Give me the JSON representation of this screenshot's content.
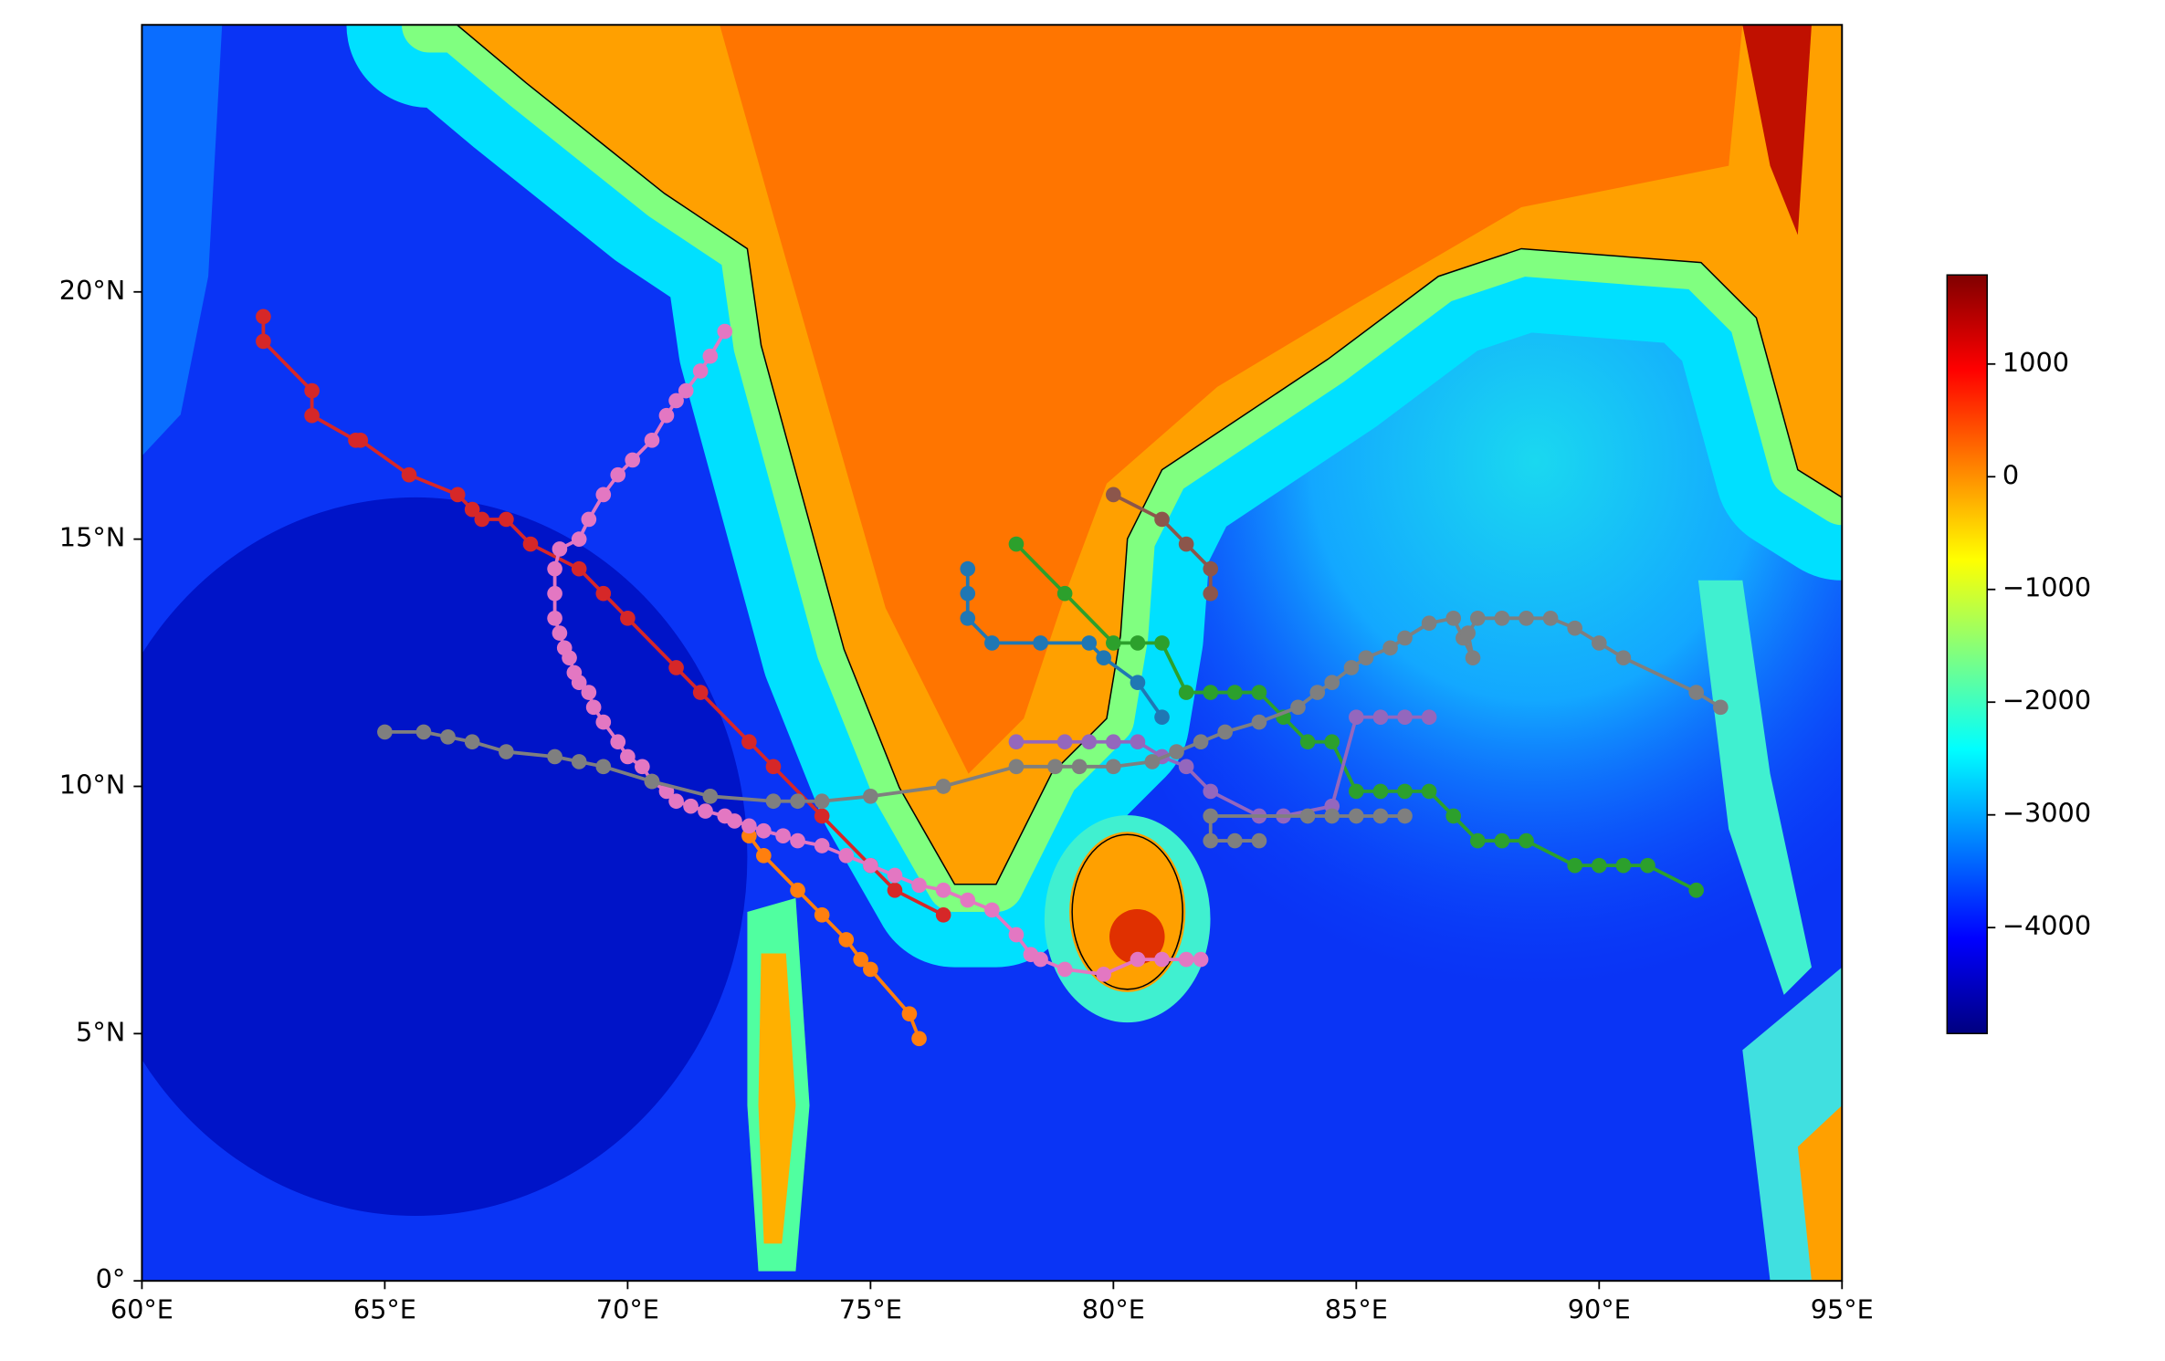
{
  "chart_data": {
    "type": "line",
    "xlim": [
      60,
      95
    ],
    "ylim": [
      0,
      25.4
    ],
    "xticks": [
      {
        "value": 60,
        "label": "60°E"
      },
      {
        "value": 65,
        "label": "65°E"
      },
      {
        "value": 70,
        "label": "70°E"
      },
      {
        "value": 75,
        "label": "75°E"
      },
      {
        "value": 80,
        "label": "80°E"
      },
      {
        "value": 85,
        "label": "85°E"
      },
      {
        "value": 90,
        "label": "90°E"
      },
      {
        "value": 95,
        "label": "95°E"
      }
    ],
    "yticks": [
      {
        "value": 0,
        "label": "0°"
      },
      {
        "value": 5,
        "label": "5°N"
      },
      {
        "value": 10,
        "label": "10°N"
      },
      {
        "value": 15,
        "label": "15°N"
      },
      {
        "value": 20,
        "label": "20°N"
      }
    ],
    "colorbar": {
      "lim": [
        -4940,
        1790
      ],
      "ticks": [
        1000,
        0,
        {
          "value": -1000,
          "label": "−1000"
        },
        {
          "value": -2000,
          "label": "−2000"
        },
        {
          "value": -3000,
          "label": "−3000"
        },
        {
          "value": -4000,
          "label": "−4000"
        }
      ]
    },
    "series": [
      {
        "color": "#d62728",
        "x": [
          62.5,
          62.5,
          63.5,
          63.5,
          64.4,
          64.5,
          65.5,
          66.5,
          66.8,
          67.0,
          67.5,
          68.0,
          69.0,
          69.5,
          70.0,
          71.0,
          71.5,
          72.5,
          73.0,
          74.0,
          75.0,
          75.5,
          76.5
        ],
        "values": [
          19.5,
          19.0,
          18.0,
          17.5,
          17.0,
          17.0,
          16.3,
          15.9,
          15.6,
          15.4,
          15.4,
          14.9,
          14.4,
          13.9,
          13.4,
          12.4,
          11.9,
          10.9,
          10.4,
          9.4,
          8.4,
          7.9,
          7.4
        ]
      },
      {
        "color": "#ff7f0e",
        "x": [
          72.5,
          72.8,
          73.5,
          74.0,
          74.5,
          74.8,
          75.0,
          75.8,
          76.0
        ],
        "values": [
          9.0,
          8.6,
          7.9,
          7.4,
          6.9,
          6.5,
          6.3,
          5.4,
          4.9
        ]
      },
      {
        "color": "#2ca02c",
        "x": [
          78,
          79,
          80,
          80.5,
          81,
          81.5,
          82,
          82.5,
          83,
          83.5,
          84,
          84.5,
          85,
          85.5,
          86,
          86.5,
          87,
          87.5,
          88,
          88.5,
          89.5,
          90,
          90.5,
          91,
          92
        ],
        "values": [
          14.9,
          13.9,
          12.9,
          12.9,
          12.9,
          11.9,
          11.9,
          11.9,
          11.9,
          11.4,
          10.9,
          10.9,
          9.9,
          9.9,
          9.9,
          9.9,
          9.4,
          8.9,
          8.9,
          8.9,
          8.4,
          8.4,
          8.4,
          8.4,
          7.9
        ]
      },
      {
        "color": "#1f77b4",
        "x": [
          77.0,
          77.0,
          77.0,
          77.5,
          78.5,
          79.5,
          79.8,
          80.5,
          81.0
        ],
        "values": [
          14.4,
          13.9,
          13.4,
          12.9,
          12.9,
          12.9,
          12.6,
          12.1,
          11.4
        ]
      },
      {
        "color": "#8c564b",
        "x": [
          80.0,
          81.0,
          81.5,
          82.0,
          82.0
        ],
        "values": [
          15.9,
          15.4,
          14.9,
          14.4,
          13.9
        ]
      },
      {
        "color": "#9467bd",
        "x": [
          78,
          79,
          79.5,
          80,
          80.5,
          81,
          81.5,
          82,
          83,
          83.5,
          84.5,
          85,
          85.5,
          86,
          86.5
        ],
        "values": [
          10.9,
          10.9,
          10.9,
          10.9,
          10.9,
          10.6,
          10.4,
          9.9,
          9.4,
          9.4,
          9.6,
          11.4,
          11.4,
          11.4,
          11.4
        ]
      },
      {
        "color": "#e377c2",
        "x": [
          72.0,
          71.7,
          71.5,
          71.2,
          71.0,
          70.8,
          70.5,
          70.1,
          69.8,
          69.5,
          69.2,
          69.0,
          68.6,
          68.5,
          68.5,
          68.5,
          68.6,
          68.7,
          68.8,
          68.9,
          69.0,
          69.2,
          69.3,
          69.5,
          69.8,
          70.0,
          70.3,
          70.5,
          70.8,
          71.0,
          71.3,
          71.6,
          72.0,
          72.2,
          72.5,
          72.8,
          73.2,
          73.5,
          74.0,
          74.5,
          75.0,
          75.5,
          76.0,
          76.5,
          77.0,
          77.5,
          78.0,
          78.3,
          78.5,
          79.0,
          79.8,
          80.5,
          81.0,
          81.5,
          81.8
        ],
        "values": [
          19.2,
          18.7,
          18.4,
          18.0,
          17.8,
          17.5,
          17.0,
          16.6,
          16.3,
          15.9,
          15.4,
          15.0,
          14.8,
          14.4,
          13.9,
          13.4,
          13.1,
          12.8,
          12.6,
          12.3,
          12.1,
          11.9,
          11.6,
          11.3,
          10.9,
          10.6,
          10.4,
          10.1,
          9.9,
          9.7,
          9.6,
          9.5,
          9.4,
          9.3,
          9.2,
          9.1,
          9.0,
          8.9,
          8.8,
          8.6,
          8.4,
          8.2,
          8.0,
          7.9,
          7.7,
          7.5,
          7.0,
          6.6,
          6.5,
          6.3,
          6.2,
          6.5,
          6.5,
          6.5,
          6.5
        ]
      },
      {
        "color": "#7f7f7f",
        "x": [
          65.0,
          65.8,
          66.3,
          66.8,
          67.5,
          68.5,
          69.0,
          69.5,
          70.5,
          71.7,
          73.0,
          73.5,
          74.0,
          75.0,
          76.5,
          78.0,
          78.8,
          79.3,
          80.0,
          80.8,
          81.3,
          81.8,
          82.3,
          83.0,
          83.8,
          84.2,
          84.5,
          84.9,
          85.2,
          85.7,
          86.0,
          86.5,
          87.0,
          87.2,
          87.4,
          87.3,
          87.5,
          88.0,
          88.5,
          89.0,
          89.5,
          90.0,
          90.5,
          92.0,
          92.5
        ],
        "values": [
          11.1,
          11.1,
          11.0,
          10.9,
          10.7,
          10.6,
          10.5,
          10.4,
          10.1,
          9.8,
          9.7,
          9.7,
          9.7,
          9.8,
          10.0,
          10.4,
          10.4,
          10.4,
          10.4,
          10.5,
          10.7,
          10.9,
          11.1,
          11.3,
          11.6,
          11.9,
          12.1,
          12.4,
          12.6,
          12.8,
          13.0,
          13.3,
          13.4,
          13.0,
          12.6,
          13.1,
          13.4,
          13.4,
          13.4,
          13.4,
          13.2,
          12.9,
          12.6,
          11.9,
          11.6
        ]
      },
      {
        "color": "#7f7f7f",
        "x": [
          86.0,
          85.5,
          85.0,
          84.5,
          84.0,
          82.0,
          82.0,
          82.5,
          83.0
        ],
        "values": [
          9.4,
          9.4,
          9.4,
          9.4,
          9.4,
          9.4,
          8.9,
          8.9,
          8.9
        ]
      }
    ]
  }
}
